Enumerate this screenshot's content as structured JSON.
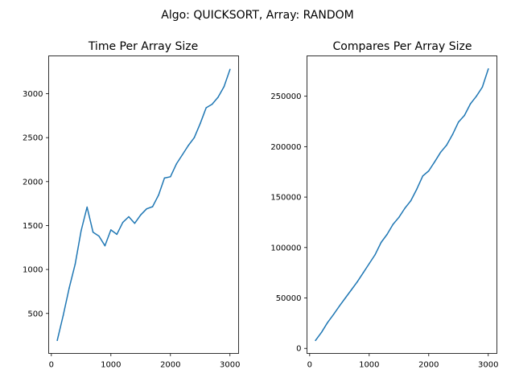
{
  "suptitle": "Algo: QUICKSORT, Array: RANDOM",
  "chart_data": [
    {
      "type": "line",
      "title": "Time Per Array Size",
      "xlabel": "",
      "ylabel": "",
      "xlim": [
        -45,
        3145
      ],
      "ylim": [
        45,
        3430
      ],
      "xticks": [
        0,
        1000,
        2000,
        3000
      ],
      "yticks": [
        500,
        1000,
        1500,
        2000,
        2500,
        3000
      ],
      "grid": false,
      "color": "#1f77b4",
      "x": [
        100,
        200,
        300,
        400,
        500,
        600,
        700,
        800,
        900,
        1000,
        1100,
        1200,
        1300,
        1400,
        1500,
        1600,
        1700,
        1800,
        1900,
        2000,
        2100,
        2200,
        2300,
        2400,
        2500,
        2600,
        2700,
        2800,
        2900,
        3000
      ],
      "y": [
        195,
        480,
        790,
        1060,
        1440,
        1710,
        1425,
        1380,
        1270,
        1450,
        1400,
        1535,
        1600,
        1525,
        1620,
        1690,
        1715,
        1845,
        2040,
        2055,
        2200,
        2305,
        2410,
        2500,
        2660,
        2840,
        2880,
        2960,
        3080,
        3275
      ]
    },
    {
      "type": "line",
      "title": "Compares Per Array Size",
      "xlabel": "",
      "ylabel": "",
      "xlim": [
        -45,
        3145
      ],
      "ylim": [
        -5000,
        290000
      ],
      "xticks": [
        0,
        1000,
        2000,
        3000
      ],
      "yticks": [
        0,
        50000,
        100000,
        150000,
        200000,
        250000
      ],
      "grid": false,
      "color": "#1f77b4",
      "x": [
        100,
        200,
        300,
        400,
        500,
        600,
        700,
        800,
        900,
        1000,
        1100,
        1200,
        1300,
        1400,
        1500,
        1600,
        1700,
        1800,
        1900,
        2000,
        2100,
        2200,
        2300,
        2400,
        2500,
        2600,
        2700,
        2800,
        2900,
        3000
      ],
      "y": [
        8000,
        16000,
        25500,
        33500,
        42000,
        50000,
        58000,
        66000,
        75000,
        84000,
        93000,
        105000,
        113000,
        123000,
        130000,
        139000,
        146500,
        158000,
        171000,
        176000,
        185000,
        194500,
        201500,
        212000,
        224500,
        231000,
        242500,
        250000,
        259000,
        277000
      ]
    }
  ]
}
